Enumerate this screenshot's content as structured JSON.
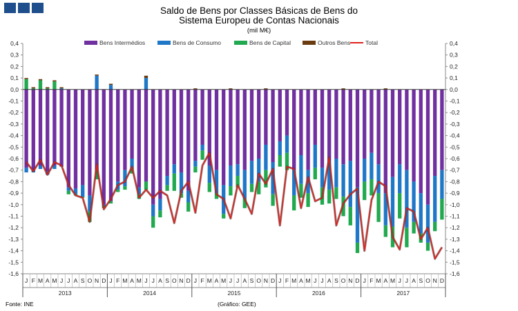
{
  "title": "Saldo de Bens por Classes Básicas de Bens do",
  "title2": "Sistema Europeu de Contas Nacionais",
  "subtitle": "(mil M€)",
  "source": "Fonte: INE",
  "credit": "(Gráfico: GEE)",
  "chart_data": {
    "type": "bar",
    "stacked": true,
    "title": "Saldo de Bens por Classes Básicas de Bens do Sistema Europeu de Contas Nacionais",
    "units": "(mil M€)",
    "ylim": [
      -1.6,
      0.4
    ],
    "yticks": [
      "0,4",
      "0,3",
      "0,2",
      "0,1",
      "0,0",
      "-0,1",
      "-0,2",
      "-0,3",
      "-0,4",
      "-0,5",
      "-0,6",
      "-0,7",
      "-0,8",
      "-0,9",
      "-1,0",
      "-1,1",
      "-1,2",
      "-1,3",
      "-1,4",
      "-1,5",
      "-1,6"
    ],
    "month_labels": [
      "J",
      "F",
      "M",
      "A",
      "M",
      "J",
      "J",
      "A",
      "S",
      "O",
      "N",
      "D"
    ],
    "years": [
      "2013",
      "2014",
      "2015",
      "2016",
      "2017"
    ],
    "grid": false,
    "legend_position": "top",
    "series": [
      {
        "name": "Bens Intermédios",
        "color": "#7030a0",
        "values": [
          -0.68,
          -0.7,
          -0.66,
          -0.71,
          -0.66,
          -0.67,
          -0.85,
          -0.86,
          -0.83,
          -0.92,
          -0.7,
          -1.0,
          -0.97,
          -0.8,
          -0.7,
          -0.6,
          -0.85,
          -0.8,
          -1.0,
          -0.95,
          -0.75,
          -0.65,
          -0.72,
          -0.88,
          -0.62,
          -0.48,
          -0.66,
          -0.7,
          -0.83,
          -0.66,
          -0.65,
          -0.7,
          -0.62,
          -0.6,
          -0.48,
          -0.63,
          -0.45,
          -0.4,
          -0.7,
          -0.57,
          -0.7,
          -0.48,
          -0.68,
          -0.62,
          -0.6,
          -0.65,
          -0.62,
          -0.85,
          -0.6,
          -0.55,
          -0.65,
          -0.9,
          -0.76,
          -0.65,
          -0.7,
          -0.8,
          -0.9,
          -1.0,
          -0.75,
          -0.7
        ]
      },
      {
        "name": "Bens de Consumo",
        "color": "#1f77c8",
        "values": [
          -0.04,
          -0.02,
          -0.03,
          -0.03,
          -0.03,
          0.01,
          -0.03,
          -0.05,
          -0.1,
          -0.14,
          0.12,
          -0.01,
          0.04,
          -0.07,
          -0.14,
          -0.09,
          -0.06,
          0.1,
          -0.1,
          -0.1,
          -0.08,
          -0.08,
          -0.18,
          -0.1,
          -0.05,
          -0.05,
          -0.15,
          -0.2,
          -0.25,
          -0.18,
          -0.1,
          -0.25,
          -0.2,
          -0.2,
          -0.22,
          -0.28,
          -0.12,
          -0.15,
          -0.22,
          -0.25,
          -0.2,
          -0.2,
          -0.17,
          -0.25,
          -0.25,
          -0.28,
          -0.4,
          -0.48,
          -0.2,
          -0.23,
          -0.25,
          -0.28,
          -0.43,
          -0.25,
          -0.5,
          -0.35,
          -0.35,
          -0.33,
          -0.4,
          -0.25
        ]
      },
      {
        "name": "Bens de Capital",
        "color": "#21a94f",
        "values": [
          0.09,
          0.01,
          0.08,
          0.01,
          0.07,
          0.0,
          -0.03,
          -0.01,
          -0.01,
          -0.09,
          -0.08,
          -0.02,
          -0.02,
          -0.02,
          -0.03,
          -0.04,
          -0.04,
          -0.07,
          -0.1,
          -0.06,
          -0.05,
          -0.15,
          -0.04,
          -0.08,
          -0.05,
          -0.08,
          -0.08,
          -0.05,
          -0.04,
          -0.08,
          -0.1,
          -0.08,
          -0.07,
          -0.11,
          -0.15,
          -0.1,
          -0.1,
          -0.15,
          -0.13,
          -0.12,
          -0.12,
          -0.1,
          -0.15,
          -0.12,
          -0.1,
          -0.17,
          -0.16,
          -0.09,
          -0.16,
          -0.14,
          -0.25,
          -0.1,
          -0.18,
          -0.22,
          -0.17,
          -0.1,
          -0.08,
          -0.07,
          -0.08,
          -0.18
        ]
      },
      {
        "name": "Outros Bens",
        "color": "#6b3c10",
        "values": [
          0.01,
          0.01,
          0.01,
          0.01,
          0.01,
          0.01,
          0.0,
          0.0,
          0.0,
          0.0,
          0.01,
          0.0,
          0.01,
          0.0,
          0.0,
          0.0,
          0.0,
          0.02,
          0.0,
          0.0,
          0.0,
          0.0,
          0.0,
          0.0,
          0.01,
          0.0,
          0.0,
          0.0,
          0.0,
          0.01,
          0.0,
          0.0,
          0.0,
          0.0,
          0.01,
          0.0,
          0.0,
          0.0,
          0.0,
          0.0,
          0.0,
          0.0,
          0.0,
          0.0,
          0.0,
          0.01,
          0.0,
          0.0,
          0.0,
          0.0,
          0.0,
          0.01,
          0.0,
          0.0,
          0.0,
          0.0,
          0.0,
          0.0,
          0.0,
          0.0
        ]
      },
      {
        "name": "Total",
        "type": "line",
        "color": "#e0201b",
        "values": [
          -0.63,
          -0.71,
          -0.61,
          -0.74,
          -0.63,
          -0.66,
          -0.83,
          -0.92,
          -0.94,
          -1.15,
          -0.65,
          -1.04,
          -0.95,
          -0.83,
          -0.8,
          -0.67,
          -0.94,
          -0.87,
          -0.94,
          -0.88,
          -0.92,
          -1.16,
          -0.88,
          -0.8,
          -1.07,
          -0.66,
          -0.55,
          -0.91,
          -0.95,
          -1.12,
          -0.83,
          -0.95,
          -1.08,
          -0.73,
          -0.82,
          -0.69,
          -1.18,
          -0.67,
          -0.69,
          -1.03,
          -0.76,
          -0.97,
          -0.94,
          -0.59,
          -1.18,
          -0.99,
          -0.91,
          -0.86,
          -1.4,
          -0.96,
          -0.8,
          -0.84,
          -1.28,
          -1.39,
          -1.03,
          -1.06,
          -1.3,
          -1.2,
          -1.47,
          -1.37
        ]
      }
    ]
  }
}
